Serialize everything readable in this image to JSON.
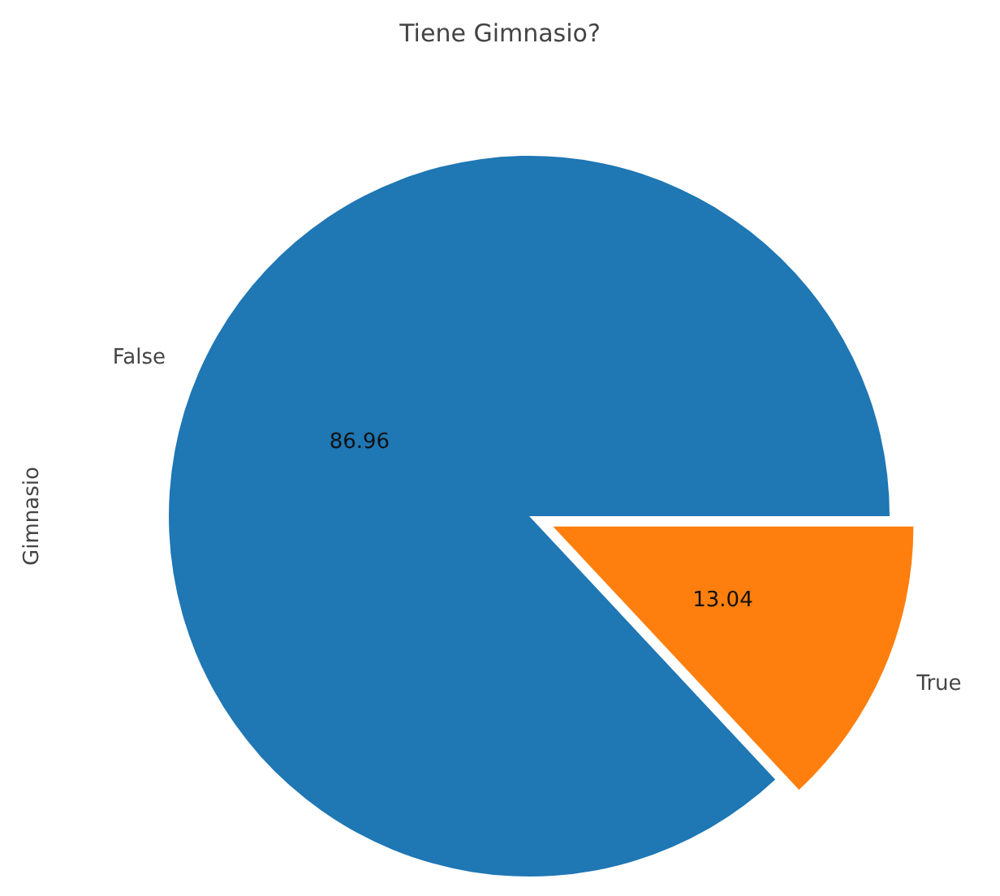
{
  "chart_data": {
    "type": "pie",
    "title": "Tiene Gimnasio?",
    "ylabel": "Gimnasio",
    "categories": [
      "False",
      "True"
    ],
    "values": [
      86.96,
      13.04
    ],
    "colors": [
      "#1f77b4",
      "#ff7f0e"
    ],
    "data_labels": true,
    "legend": false
  }
}
